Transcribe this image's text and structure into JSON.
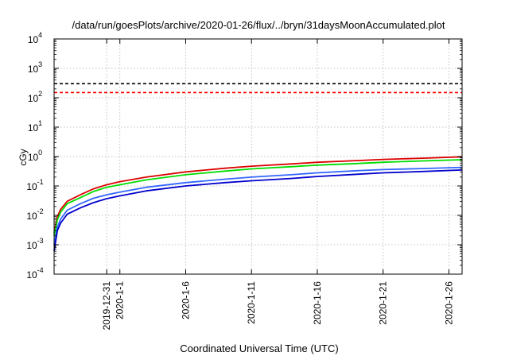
{
  "chart_data": {
    "type": "line",
    "title": "/data/run/goesPlots/archive/2020-01-26/flux/../bryn/31daysMoonAccumulated.plot",
    "xlabel": "Coordinated Universal Time (UTC)",
    "ylabel": "cGy",
    "yscale": "log",
    "ylim": [
      0.0001,
      10000
    ],
    "xlim": [
      "2019-12-27",
      "2020-01-27"
    ],
    "grid": true,
    "y_ticks": [
      {
        "value": 0.0001,
        "base": "10",
        "exp": "-4"
      },
      {
        "value": 0.001,
        "base": "10",
        "exp": "-3"
      },
      {
        "value": 0.01,
        "base": "10",
        "exp": "-2"
      },
      {
        "value": 0.1,
        "base": "10",
        "exp": "-1"
      },
      {
        "value": 1,
        "base": "10",
        "exp": "0"
      },
      {
        "value": 10,
        "base": "10",
        "exp": "1"
      },
      {
        "value": 100,
        "base": "10",
        "exp": "2"
      },
      {
        "value": 1000,
        "base": "10",
        "exp": "3"
      },
      {
        "value": 10000,
        "base": "10",
        "exp": "4"
      }
    ],
    "x_ticks": [
      {
        "date": "2019-12-31",
        "label": "2019-12-31"
      },
      {
        "date": "2020-01-01",
        "label": "2020-1-1"
      },
      {
        "date": "2020-01-06",
        "label": "2020-1-6"
      },
      {
        "date": "2020-01-11",
        "label": "2020-1-11"
      },
      {
        "date": "2020-01-16",
        "label": "2020-1-16"
      },
      {
        "date": "2020-01-21",
        "label": "2020-1-21"
      },
      {
        "date": "2020-01-26",
        "label": "2020-1-26"
      }
    ],
    "reference_lines": [
      {
        "y": 300,
        "color": "#000000",
        "style": "dashed"
      },
      {
        "y": 150,
        "color": "#ff0000",
        "style": "dashed"
      }
    ],
    "series": [
      {
        "color": "#dd0000",
        "x": [
          "2019-12-27",
          "2019-12-27T06:00",
          "2019-12-27T12:00",
          "2019-12-28",
          "2019-12-29",
          "2019-12-30",
          "2019-12-31",
          "2020-01-01",
          "2020-01-03",
          "2020-01-06",
          "2020-01-09",
          "2020-01-11",
          "2020-01-14",
          "2020-01-16",
          "2020-01-19",
          "2020-01-21",
          "2020-01-24",
          "2020-01-27"
        ],
        "y": [
          0.0025,
          0.009,
          0.016,
          0.03,
          0.05,
          0.08,
          0.11,
          0.14,
          0.2,
          0.3,
          0.4,
          0.47,
          0.56,
          0.64,
          0.73,
          0.8,
          0.88,
          0.98
        ]
      },
      {
        "color": "#00dd00",
        "x": [
          "2019-12-27",
          "2019-12-27T06:00",
          "2019-12-27T12:00",
          "2019-12-28",
          "2019-12-29",
          "2019-12-30",
          "2019-12-31",
          "2020-01-01",
          "2020-01-03",
          "2020-01-06",
          "2020-01-09",
          "2020-01-11",
          "2020-01-14",
          "2020-01-16",
          "2020-01-19",
          "2020-01-21",
          "2020-01-24",
          "2020-01-27"
        ],
        "y": [
          0.002,
          0.007,
          0.013,
          0.025,
          0.04,
          0.065,
          0.09,
          0.11,
          0.16,
          0.24,
          0.32,
          0.38,
          0.45,
          0.51,
          0.58,
          0.64,
          0.71,
          0.78
        ]
      },
      {
        "color": "#3366ff",
        "x": [
          "2019-12-27",
          "2019-12-27T06:00",
          "2019-12-27T12:00",
          "2019-12-28",
          "2019-12-29",
          "2019-12-30",
          "2019-12-31",
          "2020-01-01",
          "2020-01-03",
          "2020-01-06",
          "2020-01-09",
          "2020-01-11",
          "2020-01-14",
          "2020-01-16",
          "2020-01-19",
          "2020-01-21",
          "2020-01-24",
          "2020-01-27"
        ],
        "y": [
          0.001,
          0.004,
          0.0075,
          0.015,
          0.025,
          0.038,
          0.05,
          0.062,
          0.09,
          0.13,
          0.17,
          0.2,
          0.24,
          0.28,
          0.33,
          0.36,
          0.39,
          0.43
        ]
      },
      {
        "color": "#0000cc",
        "x": [
          "2019-12-27",
          "2019-12-27T06:00",
          "2019-12-27T12:00",
          "2019-12-28",
          "2019-12-29",
          "2019-12-30",
          "2019-12-31",
          "2020-01-01",
          "2020-01-03",
          "2020-01-06",
          "2020-01-09",
          "2020-01-11",
          "2020-01-14",
          "2020-01-16",
          "2020-01-19",
          "2020-01-21",
          "2020-01-24",
          "2020-01-27"
        ],
        "y": [
          0.0006,
          0.003,
          0.0055,
          0.011,
          0.018,
          0.027,
          0.037,
          0.046,
          0.068,
          0.1,
          0.13,
          0.15,
          0.18,
          0.21,
          0.25,
          0.28,
          0.31,
          0.35
        ]
      }
    ]
  }
}
